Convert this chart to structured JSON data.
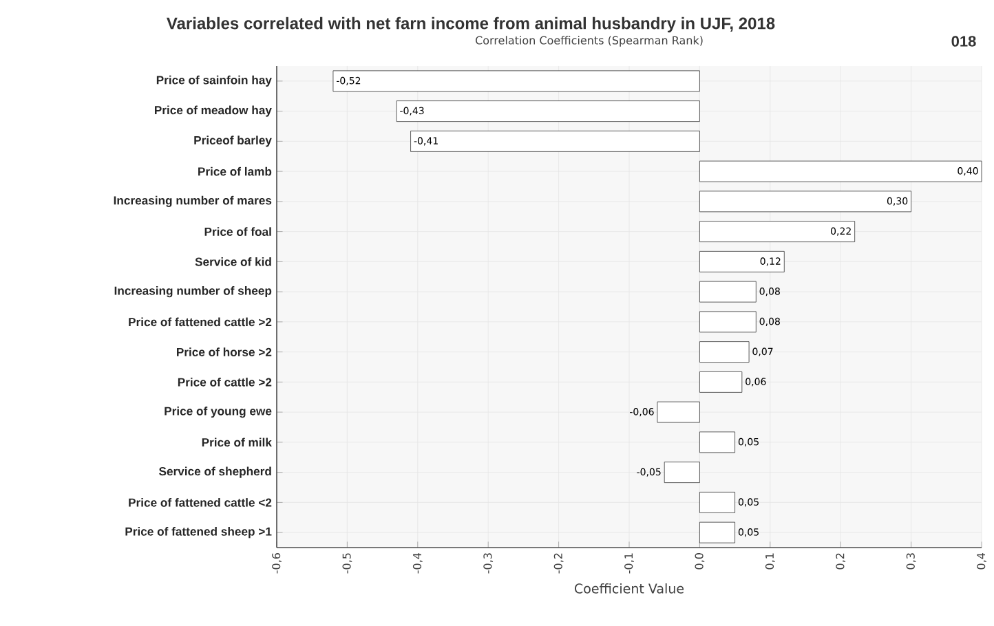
{
  "chart_data": {
    "type": "bar",
    "orientation": "horizontal",
    "title": "Variables correlated with net farn income from animal husbandry in UJF, 2018",
    "subtitle": "Correlation Coefficients (Spearman Rank)",
    "xlabel": "Coefficient Value",
    "categories": [
      "Price of sainfoin hay",
      "Price of meadow hay",
      "Priceof barley",
      "Price of lamb",
      "Increasing number of mares",
      "Price of foal",
      "Service of kid",
      "Increasing number of sheep",
      "Price of fattened cattle >2",
      "Price of horse >2",
      "Price of cattle >2",
      "Price of young ewe",
      "Price of milk",
      "Service of shepherd",
      "Price of fattened cattle <2",
      "Price of fattened sheep >1"
    ],
    "values": [
      -0.52,
      -0.43,
      -0.41,
      0.4,
      0.3,
      0.22,
      0.12,
      0.08,
      0.08,
      0.07,
      0.06,
      -0.06,
      0.05,
      -0.05,
      0.05,
      0.05
    ],
    "value_labels": [
      "-0,52",
      "-0,43",
      "-0,41",
      "0,40",
      "0,30",
      "0,22",
      "0,12",
      "0,08",
      "0,08",
      "0,07",
      "0,06",
      "-0,06",
      "0,05",
      "-0,05",
      "0,05",
      "0,05"
    ],
    "color": "#ffffff",
    "xlim": [
      -0.6,
      0.4
    ],
    "xticks": [
      {
        "value": -0.6,
        "label": "-0,6"
      },
      {
        "value": -0.5,
        "label": "-0,5"
      },
      {
        "value": -0.4,
        "label": "-0,4"
      },
      {
        "value": -0.3,
        "label": "-0,3"
      },
      {
        "value": -0.2,
        "label": "-0,2"
      },
      {
        "value": -0.1,
        "label": "-0,1"
      },
      {
        "value": 0.0,
        "label": "0,0"
      },
      {
        "value": 0.1,
        "label": "0,1"
      },
      {
        "value": 0.2,
        "label": "0,2"
      },
      {
        "value": 0.3,
        "label": "0,3"
      },
      {
        "value": 0.4,
        "label": "0,4"
      }
    ],
    "grid": true,
    "annotations": [
      "018"
    ]
  }
}
